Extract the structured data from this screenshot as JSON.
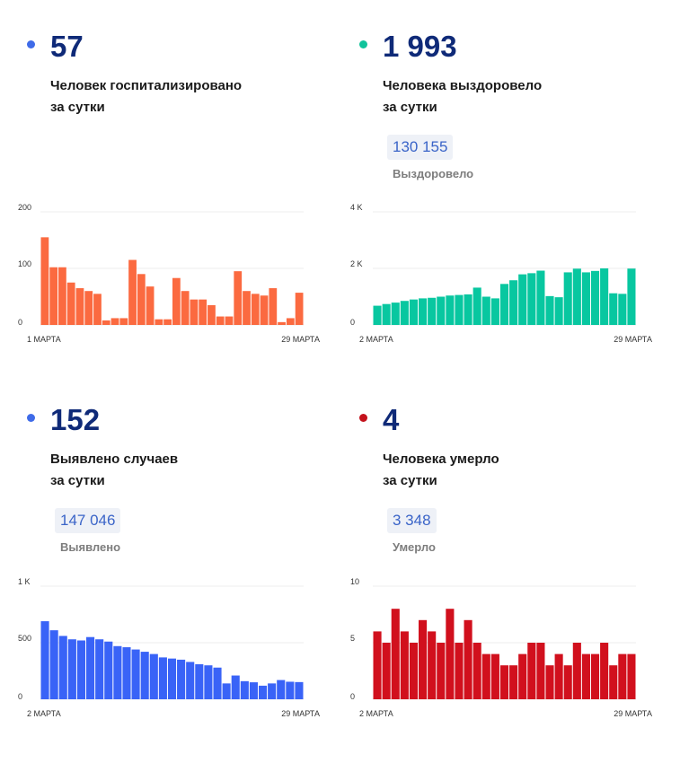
{
  "panels": [
    {
      "id": "hospitalized",
      "number": "57",
      "label_line1": "Человек госпитализировано",
      "label_line2": "за сутки",
      "dot_color": "#3f6be8",
      "total": null,
      "total_label": null
    },
    {
      "id": "recovered",
      "number": "1 993",
      "label_line1": "Человека выздоровело",
      "label_line2": "за сутки",
      "dot_color": "#10c39b",
      "total": "130 155",
      "total_label": "Выздоровело"
    },
    {
      "id": "cases",
      "number": "152",
      "label_line1": "Выявлено случаев",
      "label_line2": "за сутки",
      "dot_color": "#3f6be8",
      "total": "147 046",
      "total_label": "Выявлено"
    },
    {
      "id": "deaths",
      "number": "4",
      "label_line1": "Человека умерло",
      "label_line2": "за сутки",
      "dot_color": "#c4121c",
      "total": "3 348",
      "total_label": "Умерло"
    }
  ],
  "chart_data": [
    {
      "type": "bar",
      "series_color": "#fb6a40",
      "ylim": [
        0,
        200
      ],
      "y_ticks": [
        {
          "value": 0,
          "label": "0"
        },
        {
          "value": 100,
          "label": "100"
        },
        {
          "value": 200,
          "label": "200"
        }
      ],
      "x_start_label": "1 МАРТА",
      "x_end_label": "29 МАРТА",
      "values": [
        155,
        102,
        102,
        75,
        65,
        60,
        55,
        8,
        12,
        12,
        115,
        90,
        68,
        10,
        10,
        83,
        60,
        45,
        45,
        35,
        15,
        15,
        95,
        60,
        55,
        52,
        65,
        5,
        12,
        57
      ]
    },
    {
      "type": "bar",
      "series_color": "#08c7a0",
      "ylim": [
        0,
        4000
      ],
      "y_ticks": [
        {
          "value": 0,
          "label": "0"
        },
        {
          "value": 2000,
          "label": "2 K"
        },
        {
          "value": 4000,
          "label": "4 K"
        }
      ],
      "x_start_label": "2 МАРТА",
      "x_end_label": "29 МАРТА",
      "values": [
        680,
        740,
        790,
        850,
        900,
        940,
        960,
        1000,
        1040,
        1060,
        1080,
        1320,
        1000,
        940,
        1450,
        1580,
        1790,
        1830,
        1920,
        1020,
        980,
        1860,
        1990,
        1860,
        1910,
        2000,
        1120,
        1100,
        1993
      ]
    },
    {
      "type": "bar",
      "series_color": "#3963f7",
      "ylim": [
        0,
        1000
      ],
      "y_ticks": [
        {
          "value": 0,
          "label": "0"
        },
        {
          "value": 500,
          "label": "500"
        },
        {
          "value": 1000,
          "label": "1 K"
        }
      ],
      "x_start_label": "2 МАРТА",
      "x_end_label": "29 МАРТА",
      "values": [
        690,
        610,
        560,
        530,
        520,
        550,
        530,
        510,
        470,
        460,
        440,
        420,
        400,
        370,
        360,
        350,
        330,
        310,
        300,
        280,
        140,
        210,
        160,
        150,
        120,
        140,
        170,
        155,
        152
      ]
    },
    {
      "type": "bar",
      "series_color": "#d1101d",
      "ylim": [
        0,
        10
      ],
      "y_ticks": [
        {
          "value": 0,
          "label": "0"
        },
        {
          "value": 5,
          "label": "5"
        },
        {
          "value": 10,
          "label": "10"
        }
      ],
      "x_start_label": "2 МАРТА",
      "x_end_label": "29 МАРТА",
      "values": [
        6,
        5,
        8,
        6,
        5,
        7,
        6,
        5,
        8,
        5,
        7,
        5,
        4,
        4,
        3,
        3,
        4,
        5,
        5,
        3,
        4,
        3,
        5,
        4,
        4,
        5,
        3,
        4,
        4
      ]
    }
  ]
}
